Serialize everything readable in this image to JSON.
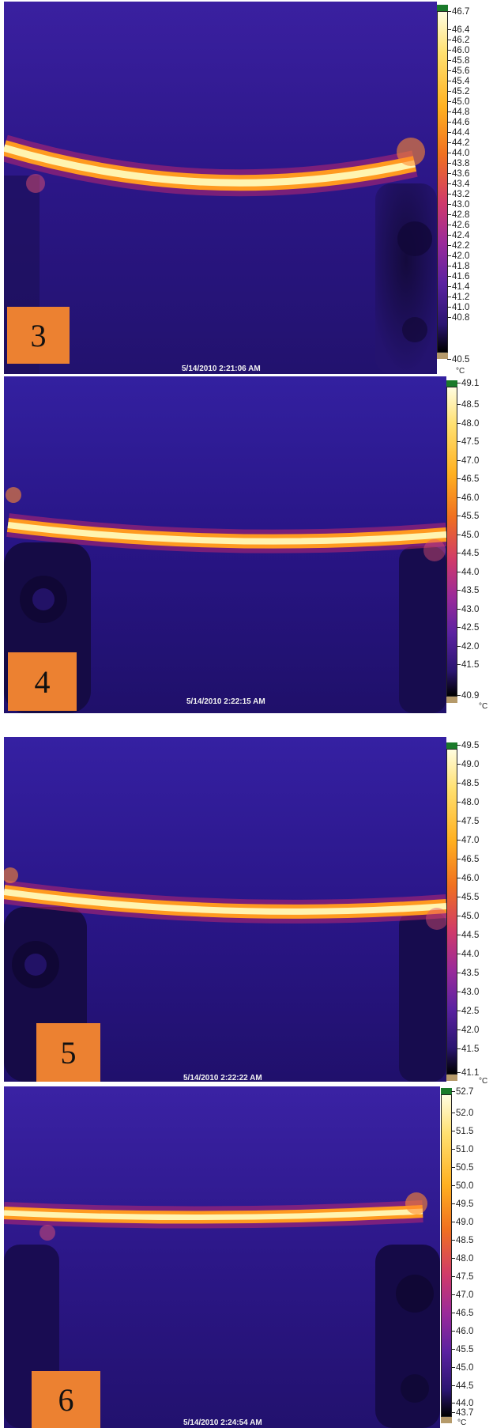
{
  "colors": {
    "background_dark": "#1c0e5a",
    "background_mid": "#2a1a85",
    "hot_core": "#fffbd0",
    "hot_mid": "#ffb020",
    "hot_edge": "#c8286e",
    "scale_top_marker": "#1a7a2a",
    "scale_bottom_marker": "#b59a6a",
    "label_box": "#ec8131"
  },
  "unit": "°C",
  "panels": [
    {
      "label": "3",
      "timestamp": "5/14/2010 2:21:06 AM",
      "scale_ticks": [
        "46.7",
        "46.4",
        "46.2",
        "46.0",
        "45.8",
        "45.6",
        "45.4",
        "45.2",
        "45.0",
        "44.8",
        "44.6",
        "44.4",
        "44.2",
        "44.0",
        "43.8",
        "43.6",
        "43.4",
        "43.2",
        "43.0",
        "42.8",
        "42.6",
        "42.4",
        "42.2",
        "42.0",
        "41.8",
        "41.6",
        "41.4",
        "41.2",
        "41.0",
        "40.8",
        "40.5"
      ]
    },
    {
      "label": "4",
      "timestamp": "5/14/2010 2:22:15 AM",
      "scale_ticks": [
        "49.1",
        "48.5",
        "48.0",
        "47.5",
        "47.0",
        "46.5",
        "46.0",
        "45.5",
        "45.0",
        "44.5",
        "44.0",
        "43.5",
        "43.0",
        "42.5",
        "42.0",
        "41.5",
        "40.9"
      ]
    },
    {
      "label": "5",
      "timestamp": "5/14/2010 2:22:22 AM",
      "scale_ticks": [
        "49.5",
        "49.0",
        "48.5",
        "48.0",
        "47.5",
        "47.0",
        "46.5",
        "46.0",
        "45.5",
        "45.0",
        "44.5",
        "44.0",
        "43.5",
        "43.0",
        "42.5",
        "42.0",
        "41.5",
        "41.1"
      ]
    },
    {
      "label": "6",
      "timestamp": "5/14/2010 2:24:54 AM",
      "scale_ticks": [
        "52.7",
        "52.0",
        "51.5",
        "51.0",
        "50.5",
        "50.0",
        "49.5",
        "49.0",
        "48.5",
        "48.0",
        "47.5",
        "47.0",
        "46.5",
        "46.0",
        "45.5",
        "45.0",
        "44.5",
        "44.0",
        "43.7"
      ]
    }
  ]
}
